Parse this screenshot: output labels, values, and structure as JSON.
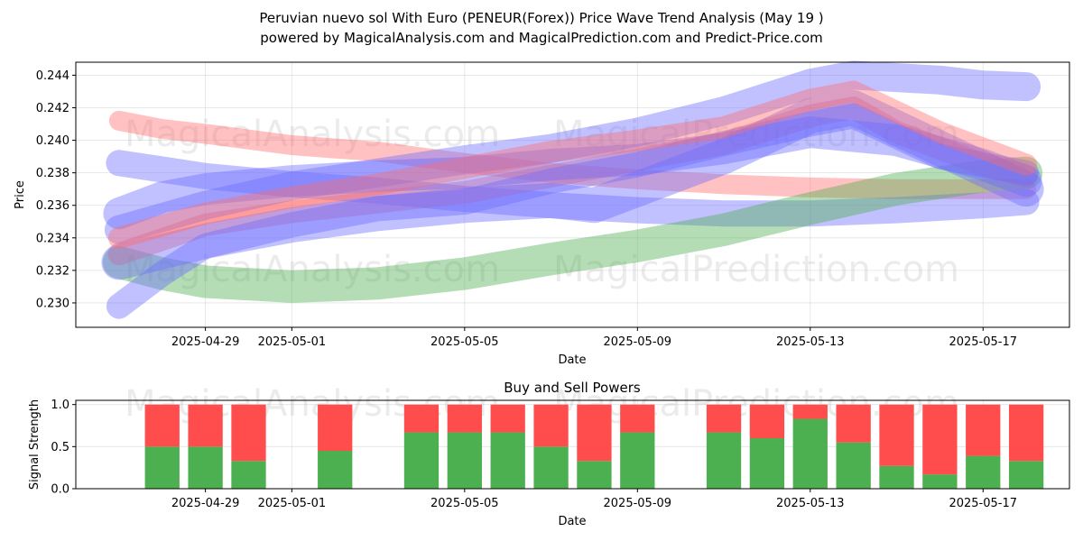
{
  "title_line1": "Peruvian nuevo sol With Euro (PENEUR(Forex)) Price Wave Trend Analysis (May 19 )",
  "title_line2": "powered by MagicalAnalysis.com and MagicalPrediction.com and Predict-Price.com",
  "watermarks": [
    "MagicalAnalysis.com",
    "MagicalPrediction.com"
  ],
  "chart_data": [
    {
      "type": "line",
      "title": "",
      "xlabel": "Date",
      "ylabel": "Price",
      "x_tick_labels": [
        "2025-04-29",
        "2025-05-01",
        "2025-05-05",
        "2025-05-09",
        "2025-05-13",
        "2025-05-17"
      ],
      "y_tick_labels": [
        "0.230",
        "0.232",
        "0.234",
        "0.236",
        "0.238",
        "0.240",
        "0.242",
        "0.244"
      ],
      "ylim": [
        0.2285,
        0.2448
      ],
      "xlim": [
        "2025-04-26",
        "2025-05-19"
      ],
      "grid": true,
      "series": [
        {
          "color": "#ff6b6b",
          "x": [
            "2025-04-27",
            "2025-04-28",
            "2025-04-29",
            "2025-05-01",
            "2025-05-03",
            "2025-05-05",
            "2025-05-07",
            "2025-05-09",
            "2025-05-11",
            "2025-05-13",
            "2025-05-15",
            "2025-05-17",
            "2025-05-18"
          ],
          "y": [
            0.2412,
            0.2407,
            0.2404,
            0.2397,
            0.2393,
            0.2386,
            0.238,
            0.2376,
            0.2373,
            0.2371,
            0.237,
            0.237,
            0.237
          ]
        },
        {
          "color": "#6b6bff",
          "x": [
            "2025-04-27",
            "2025-04-28",
            "2025-04-29",
            "2025-05-01",
            "2025-05-03",
            "2025-05-05",
            "2025-05-07",
            "2025-05-09",
            "2025-05-11",
            "2025-05-13",
            "2025-05-15",
            "2025-05-17",
            "2025-05-18"
          ],
          "y": [
            0.2386,
            0.2382,
            0.2378,
            0.2373,
            0.2369,
            0.2364,
            0.236,
            0.2357,
            0.2355,
            0.2355,
            0.2357,
            0.236,
            0.2362
          ]
        },
        {
          "color": "#4caf50",
          "x": [
            "2025-04-27",
            "2025-04-28",
            "2025-04-29",
            "2025-05-01",
            "2025-05-03",
            "2025-05-05",
            "2025-05-07",
            "2025-05-09",
            "2025-05-11",
            "2025-05-13",
            "2025-05-15",
            "2025-05-17",
            "2025-05-18"
          ],
          "y": [
            0.2325,
            0.2318,
            0.2313,
            0.231,
            0.2312,
            0.2318,
            0.2327,
            0.2335,
            0.2345,
            0.2358,
            0.237,
            0.2378,
            0.238
          ]
        },
        {
          "color": "#ff6b6b",
          "x": [
            "2025-04-27",
            "2025-04-29",
            "2025-05-01",
            "2025-05-03",
            "2025-05-05",
            "2025-05-07",
            "2025-05-09",
            "2025-05-11",
            "2025-05-13",
            "2025-05-14",
            "2025-05-15",
            "2025-05-17",
            "2025-05-18"
          ],
          "y": [
            0.233,
            0.2348,
            0.2356,
            0.2362,
            0.2368,
            0.2378,
            0.2388,
            0.2398,
            0.2415,
            0.242,
            0.2405,
            0.2385,
            0.2378
          ]
        },
        {
          "color": "#6b6bff",
          "x": [
            "2025-04-27",
            "2025-04-29",
            "2025-05-01",
            "2025-05-03",
            "2025-05-05",
            "2025-05-07",
            "2025-05-09",
            "2025-05-11",
            "2025-05-13",
            "2025-05-14",
            "2025-05-16",
            "2025-05-17",
            "2025-05-18"
          ],
          "y": [
            0.2345,
            0.236,
            0.2372,
            0.238,
            0.2388,
            0.2395,
            0.2405,
            0.2418,
            0.2435,
            0.244,
            0.2437,
            0.2434,
            0.2433
          ]
        },
        {
          "color": "#6b6bff",
          "x": [
            "2025-04-27",
            "2025-04-29",
            "2025-05-01",
            "2025-05-03",
            "2025-05-05",
            "2025-05-07",
            "2025-05-08",
            "2025-05-09",
            "2025-05-11",
            "2025-05-13",
            "2025-05-14",
            "2025-05-16",
            "2025-05-18"
          ],
          "y": [
            0.2325,
            0.2338,
            0.2348,
            0.2355,
            0.236,
            0.2363,
            0.236,
            0.237,
            0.239,
            0.2415,
            0.242,
            0.2395,
            0.237
          ]
        },
        {
          "color": "#6b6bff",
          "x": [
            "2025-04-27",
            "2025-04-28",
            "2025-04-29",
            "2025-05-01",
            "2025-05-03",
            "2025-05-05",
            "2025-05-07",
            "2025-05-09",
            "2025-05-11",
            "2025-05-13",
            "2025-05-14",
            "2025-05-16",
            "2025-05-18"
          ],
          "y": [
            0.2298,
            0.2318,
            0.2335,
            0.2348,
            0.2358,
            0.2362,
            0.2375,
            0.2385,
            0.2398,
            0.241,
            0.2415,
            0.239,
            0.238
          ]
        },
        {
          "color": "#6b6bff",
          "x": [
            "2025-04-27",
            "2025-04-28",
            "2025-04-29",
            "2025-05-01",
            "2025-05-03",
            "2025-05-05",
            "2025-05-07",
            "2025-05-09",
            "2025-05-11",
            "2025-05-13",
            "2025-05-15",
            "2025-05-17",
            "2025-05-18"
          ],
          "y": [
            0.2355,
            0.2365,
            0.237,
            0.2375,
            0.2378,
            0.238,
            0.2385,
            0.2388,
            0.2395,
            0.2405,
            0.24,
            0.2385,
            0.2375
          ]
        },
        {
          "color": "#ff6b6b",
          "x": [
            "2025-04-27",
            "2025-04-29",
            "2025-05-01",
            "2025-05-03",
            "2025-05-05",
            "2025-05-07",
            "2025-05-09",
            "2025-05-11",
            "2025-05-13",
            "2025-05-14",
            "2025-05-16",
            "2025-05-18"
          ],
          "y": [
            0.234,
            0.2355,
            0.2365,
            0.2373,
            0.2383,
            0.2393,
            0.24,
            0.2408,
            0.2425,
            0.243,
            0.2405,
            0.2385
          ]
        }
      ]
    },
    {
      "type": "bar",
      "title": "Buy and Sell Powers",
      "xlabel": "Date",
      "ylabel": "Signal Strength",
      "x_tick_labels": [
        "2025-04-29",
        "2025-05-01",
        "2025-05-05",
        "2025-05-09",
        "2025-05-13",
        "2025-05-17"
      ],
      "y_tick_labels": [
        "0.0",
        "0.5",
        "1.0"
      ],
      "ylim": [
        0,
        1.05
      ],
      "grid": true,
      "categories": [
        "2025-04-28",
        "2025-04-29",
        "2025-04-30",
        "2025-05-02",
        "2025-05-04",
        "2025-05-05",
        "2025-05-06",
        "2025-05-07",
        "2025-05-08",
        "2025-05-09",
        "2025-05-11",
        "2025-05-12",
        "2025-05-13",
        "2025-05-14",
        "2025-05-15",
        "2025-05-16",
        "2025-05-17",
        "2025-05-18"
      ],
      "series": [
        {
          "color": "#4caf50",
          "values": [
            0.5,
            0.5,
            0.33,
            0.45,
            0.67,
            0.67,
            0.67,
            0.5,
            0.33,
            0.67,
            0.67,
            0.6,
            0.83,
            0.55,
            0.27,
            0.17,
            0.39,
            0.33
          ]
        },
        {
          "color": "#ff4d4d",
          "values": [
            0.5,
            0.5,
            0.67,
            0.55,
            0.33,
            0.33,
            0.33,
            0.5,
            0.67,
            0.33,
            0.33,
            0.4,
            0.17,
            0.45,
            0.73,
            0.83,
            0.61,
            0.67
          ]
        }
      ]
    }
  ]
}
